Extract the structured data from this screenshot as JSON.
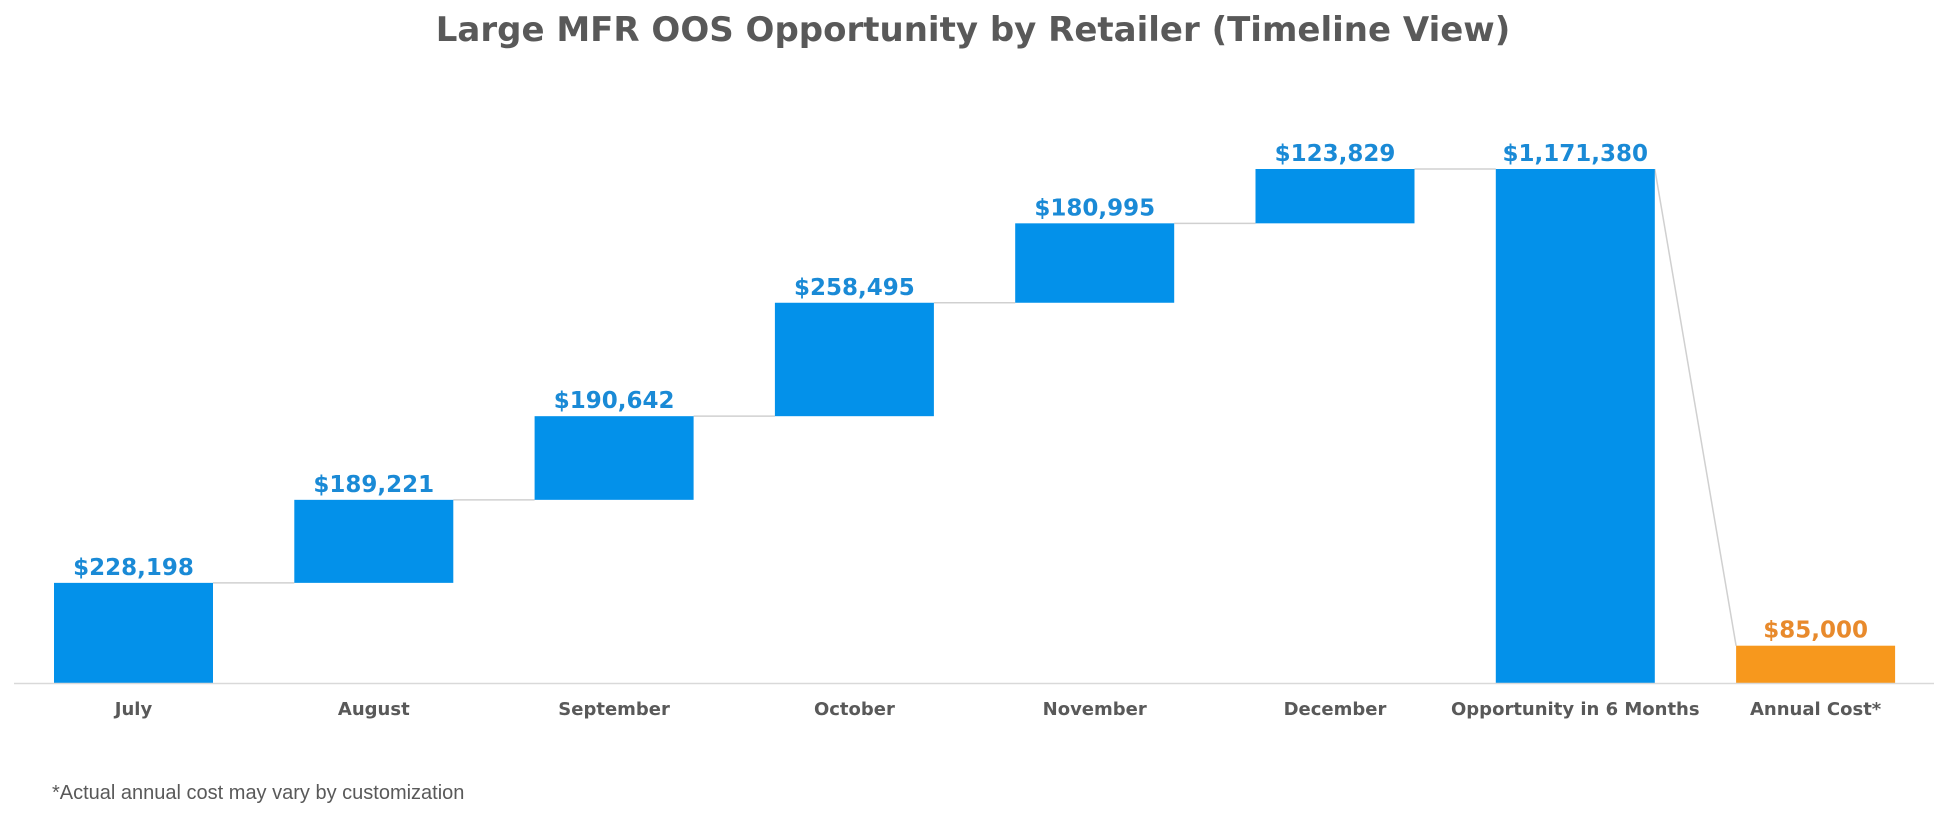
{
  "chart_data": {
    "type": "bar",
    "subtype": "waterfall",
    "title": "Large MFR OOS Opportunity by Retailer (Timeline View)",
    "xlabel": "",
    "ylabel": "",
    "categories": [
      "July",
      "August",
      "September",
      "October",
      "November",
      "December",
      "Opportunity in 6 Months",
      "Annual Cost*"
    ],
    "values": [
      228198,
      189221,
      190642,
      258495,
      180995,
      123829,
      1171380,
      85000
    ],
    "value_labels": [
      "$228,198",
      "$189,221",
      "$190,642",
      "$258,495",
      "$180,995",
      "$123,829",
      "$1,171,380",
      "$85,000"
    ],
    "bar_kind": [
      "increase",
      "increase",
      "increase",
      "increase",
      "increase",
      "increase",
      "total",
      "cost"
    ],
    "colors": {
      "increase": "#0391ea",
      "total": "#0391ea",
      "cost": "#f7981d",
      "increase_label": "#1a8ad6",
      "cost_label": "#e88a2c",
      "connector": "#d0d0d0",
      "axis": "#d9d9d9"
    },
    "grid": false,
    "legend": "none",
    "ylim": [
      0,
      1200000
    ]
  },
  "footnote": "*Actual annual cost may vary by customization"
}
